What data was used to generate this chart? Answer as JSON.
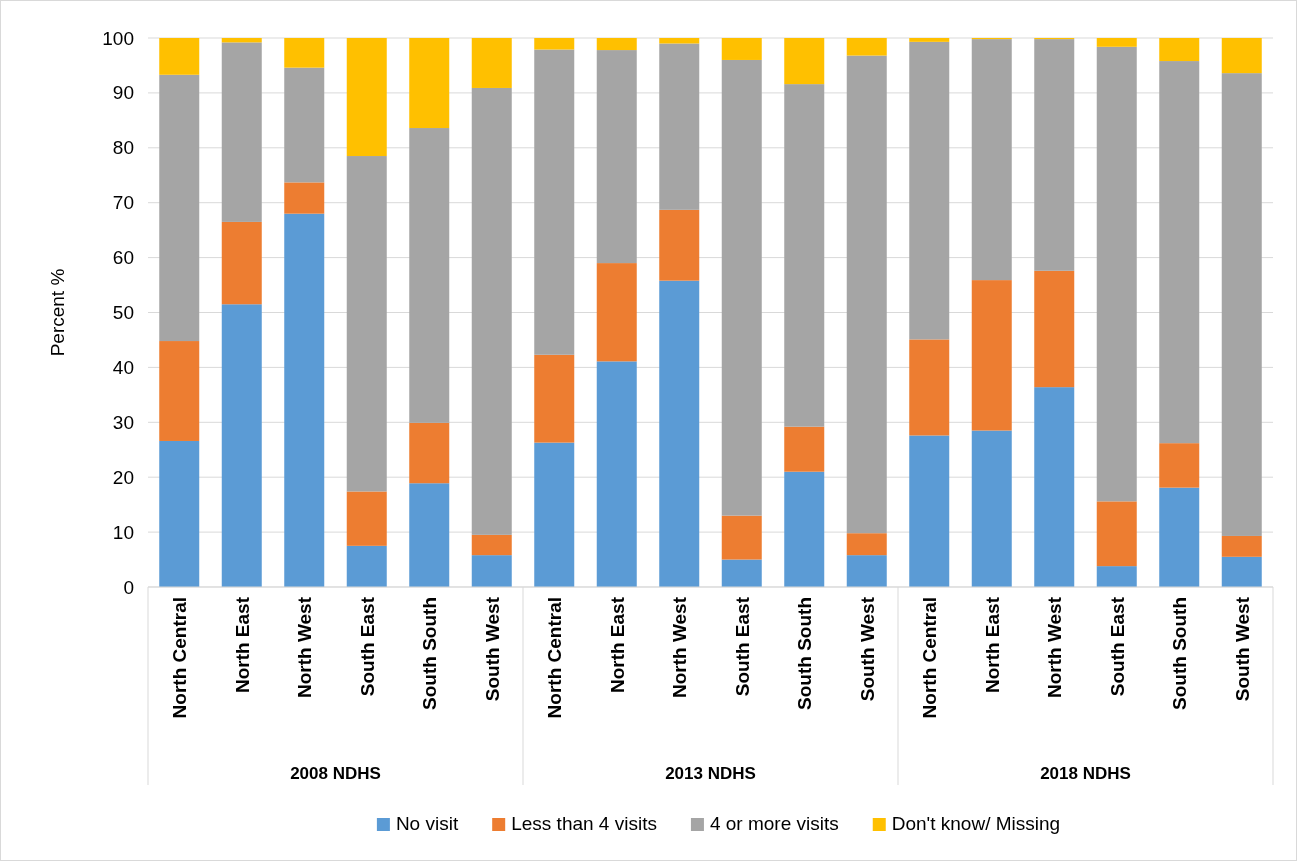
{
  "chart_data": {
    "type": "bar",
    "stacked": true,
    "ylabel": "Percent %",
    "categories": [
      "North Central",
      "North East",
      "North West",
      "South East",
      "South South",
      "South West",
      "North Central",
      "North East",
      "North West",
      "South East",
      "South South",
      "South West",
      "North Central",
      "North East",
      "North West",
      "South East",
      "South South",
      "South West"
    ],
    "annotations": [
      "2008 NDHS",
      "2013 NDHS",
      "2018 NDHS"
    ],
    "series": [
      {
        "name": "No visit",
        "color": "#5b9bd5",
        "values": [
          26.6,
          51.5,
          68.0,
          7.5,
          18.9,
          5.8,
          26.3,
          41.1,
          55.8,
          5.0,
          21.0,
          5.8,
          27.6,
          28.5,
          36.4,
          3.8,
          18.1,
          5.5
        ]
      },
      {
        "name": "Less than 4 visits",
        "color": "#ed7d31",
        "values": [
          18.2,
          15.0,
          5.7,
          9.9,
          11.0,
          3.7,
          16.0,
          17.9,
          12.9,
          8.0,
          8.2,
          4.0,
          17.5,
          27.4,
          21.2,
          11.8,
          8.1,
          3.8
        ]
      },
      {
        "name": "4 or more visits",
        "color": "#a5a5a5",
        "values": [
          48.5,
          32.7,
          20.9,
          61.1,
          53.7,
          81.4,
          55.6,
          38.8,
          30.3,
          83.0,
          62.4,
          87.0,
          54.2,
          43.9,
          42.2,
          82.8,
          69.6,
          84.3
        ]
      },
      {
        "name": "Don't know/ Missing",
        "color": "#ffc000",
        "values": [
          6.7,
          0.8,
          5.4,
          21.5,
          16.4,
          9.1,
          2.1,
          2.2,
          1.0,
          4.0,
          8.4,
          3.2,
          0.7,
          0.2,
          0.2,
          1.6,
          4.2,
          6.4
        ]
      }
    ],
    "ylim": [
      0,
      100
    ],
    "yticks": [
      0,
      10,
      20,
      30,
      40,
      50,
      60,
      70,
      80,
      90,
      100
    ],
    "grid": "y",
    "legend": "bottom"
  }
}
